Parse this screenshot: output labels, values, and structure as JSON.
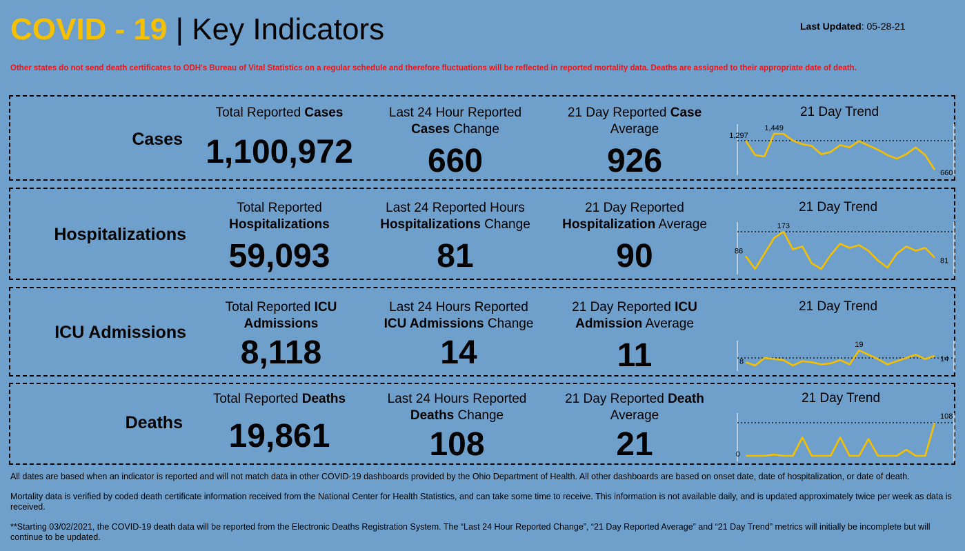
{
  "header": {
    "title_accent": "COVID - 19",
    "title_sep": "|",
    "title_main": "Key Indicators",
    "updated_label": "Last Updated",
    "updated_value": ": 05-28-21"
  },
  "notice": "Other states do not send death certificates to ODH's Bureau of Vital Statistics on a regular schedule and therefore fluctuations will be reflected in reported mortality data. Deaths are assigned to their appropriate date of death.",
  "trend_title": "21 Day Trend",
  "cases": {
    "name": "Cases",
    "total_pre": "Total Reported ",
    "total_bold": "Cases",
    "total_value": "1,100,972",
    "change_l1": "Last 24 Hour Reported",
    "change_bold": "Cases",
    "change_post": " Change",
    "change_value": "660",
    "avg_pre": "21 Day Reported ",
    "avg_bold": "Case",
    "avg_l2": "Average",
    "avg_value": "926",
    "trend_labels": [
      "1,297",
      "1,449",
      "660"
    ]
  },
  "hosp": {
    "name": "Hospitalizations",
    "total_l1": "Total Reported",
    "total_bold": "Hospitalizations",
    "total_value": "59,093",
    "change_l1": "Last 24 Reported Hours",
    "change_bold": "Hospitalizations",
    "change_post": " Change",
    "change_value": "81",
    "avg_l1": "21 Day Reported",
    "avg_bold": "Hospitalization",
    "avg_post": " Average",
    "avg_value": "90",
    "trend_labels": [
      "86",
      "173",
      "81"
    ]
  },
  "icu": {
    "name": "ICU Admissions",
    "total_pre": "Total Reported ",
    "total_bold1": "ICU",
    "total_bold2": "Admissions",
    "total_value": "8,118",
    "change_l1": "Last 24 Hours Reported",
    "change_bold": "ICU Admissions",
    "change_post": " Change",
    "change_value": "14",
    "avg_pre": "21 Day Reported ",
    "avg_bold1": "ICU",
    "avg_bold2": "Admission",
    "avg_post": " Average",
    "avg_value": "11",
    "trend_labels": [
      "8",
      "19",
      "14"
    ]
  },
  "deaths": {
    "name": "Deaths",
    "total_pre": "Total Reported ",
    "total_bold": "Deaths",
    "total_value": "19,861",
    "change_l1": "Last 24 Hours Reported",
    "change_bold": "Deaths",
    "change_post": " Change",
    "change_value": "108",
    "avg_pre": "21 Day Reported ",
    "avg_bold": "Death",
    "avg_l2": "Average",
    "avg_value": "21",
    "trend_labels": [
      "0",
      "108"
    ]
  },
  "footer": [
    "All dates are based when an indicator is reported and will not match data in other COVID-19 dashboards provided by the Ohio Department of Health. All other dashboards are based on onset date, date of hospitalization, or date of death.",
    "Mortality data is verified by coded death certificate information received from the National Center for Health Statistics, and can take some time to receive. This information is not available daily, and is updated approximately twice per week as data is received.",
    "**Starting 03/02/2021, the COVID-19 death data will be reported from the Electronic Deaths Registration System. The “Last 24 Hour Reported Change”, “21 Day Reported Average” and “21 Day Trend” metrics will initially be incomplete but will continue to be updated."
  ],
  "colors": {
    "accent": "#f5c000",
    "alert": "#e8161b",
    "background": "#6fa0cc",
    "trend_line": "#f5c000"
  },
  "chart_data": [
    {
      "type": "line",
      "title": "21 Day Trend",
      "series": [
        {
          "values": [
            1297,
            980,
            950,
            1449,
            1449,
            1300,
            1220,
            1180,
            1000,
            1050,
            1200,
            1150,
            1290,
            1190,
            1100,
            980,
            900,
            1000,
            1150,
            980,
            660
          ]
        }
      ],
      "reference_line": 1297
    },
    {
      "type": "line",
      "title": "21 Day Trend",
      "series": [
        {
          "values": [
            86,
            40,
            95,
            150,
            173,
            110,
            120,
            60,
            40,
            90,
            130,
            115,
            125,
            105,
            70,
            45,
            95,
            120,
            105,
            115,
            81
          ]
        }
      ],
      "reference_line": 173
    },
    {
      "type": "line",
      "title": "21 Day Trend",
      "series": [
        {
          "values": [
            8,
            5,
            12,
            11,
            10,
            5,
            9,
            8,
            6,
            7,
            10,
            6,
            19,
            15,
            11,
            6,
            9,
            12,
            15,
            11,
            14
          ]
        }
      ],
      "reference_line": 12
    },
    {
      "type": "line",
      "title": "21 Day Trend",
      "series": [
        {
          "values": [
            0,
            0,
            0,
            4,
            0,
            0,
            60,
            0,
            0,
            0,
            60,
            0,
            0,
            55,
            0,
            0,
            0,
            20,
            0,
            0,
            108
          ]
        }
      ],
      "reference_line": 108
    }
  ]
}
